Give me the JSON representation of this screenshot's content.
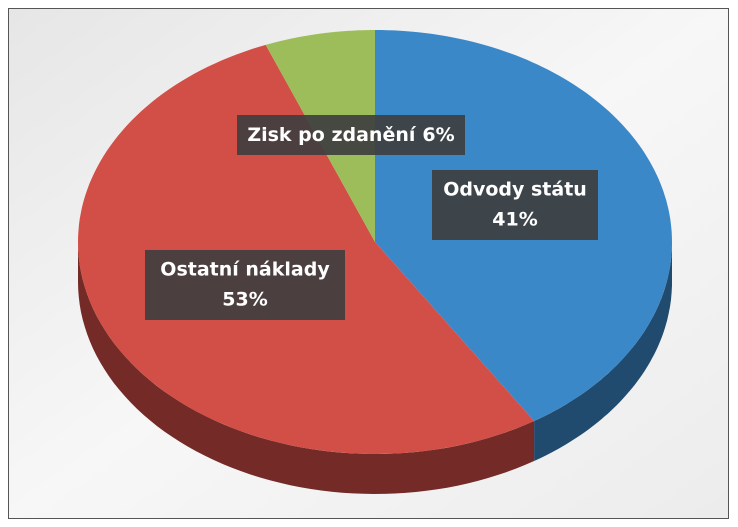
{
  "chart_data": {
    "type": "pie",
    "categories": [
      "Odvody státu",
      "Ostatní náklady",
      "Zisk po zdanění"
    ],
    "values": [
      41,
      53,
      6
    ],
    "value_labels": [
      "41%",
      "53%",
      "6%"
    ],
    "colors": [
      "#3b88c9",
      "#d24f47",
      "#9dbd5a"
    ]
  }
}
